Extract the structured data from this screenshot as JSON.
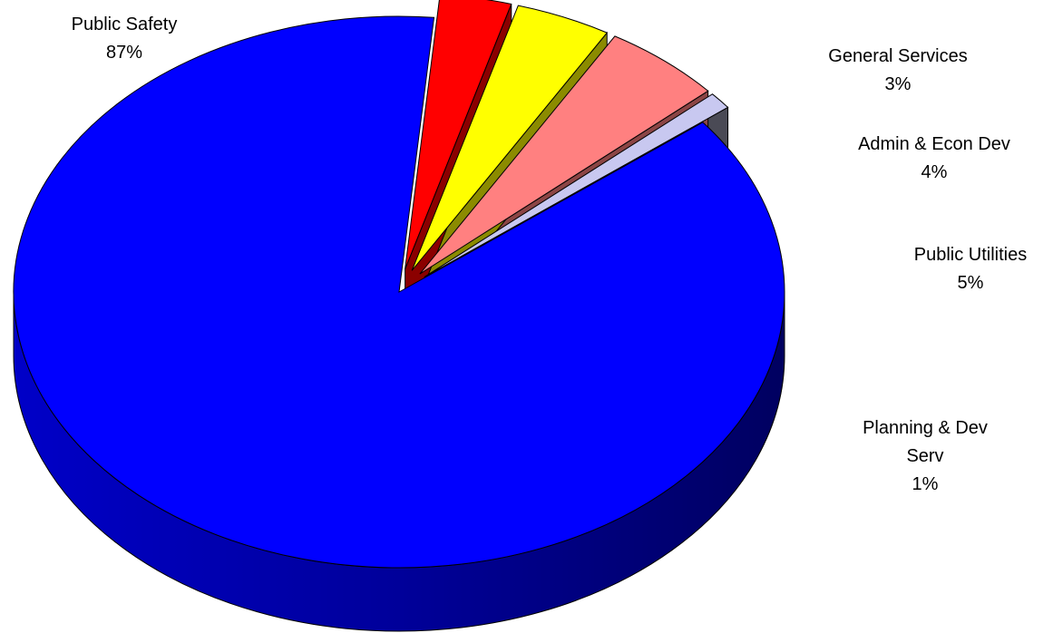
{
  "chart_data": {
    "type": "pie",
    "title": "",
    "style": "3d-exploded",
    "slices": [
      {
        "name": "Public Safety",
        "value": 87,
        "value_label": "87%",
        "color": "#0000FF",
        "side_color": "#00008B"
      },
      {
        "name": "General Services",
        "value": 3,
        "value_label": "3%",
        "color": "#FF0000",
        "side_color": "#8B0000"
      },
      {
        "name": "Admin & Econ Dev",
        "value": 4,
        "value_label": "4%",
        "color": "#FFFF00",
        "side_color": "#8B8B00"
      },
      {
        "name": "Public Utilities",
        "value": 5,
        "value_label": "5%",
        "color": "#FF8080",
        "side_color": "#8B4545"
      },
      {
        "name": "Planning & Dev Serv",
        "name_lines": [
          "Planning & Dev",
          "Serv"
        ],
        "value": 1,
        "value_label": "1%",
        "color": "#C8C8F0",
        "side_color": "#4A4A55"
      }
    ]
  }
}
